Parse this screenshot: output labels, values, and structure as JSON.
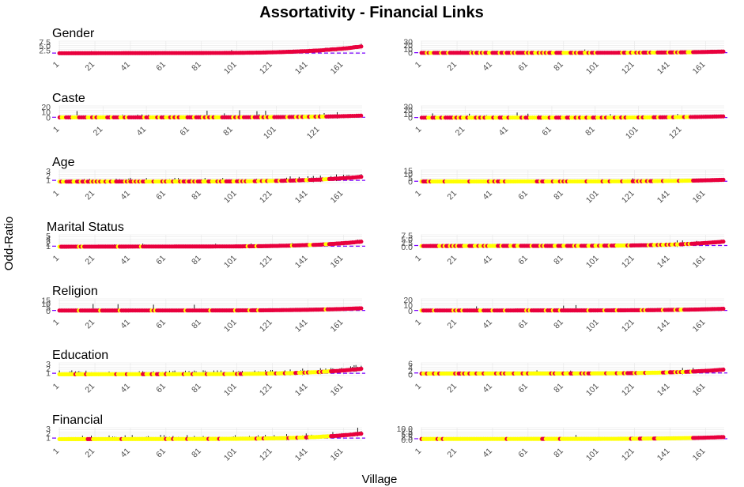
{
  "figure": {
    "title": "Assortativity - Financial Links",
    "xlabel": "Village",
    "ylabel": "Odd-Ratio"
  },
  "colors": {
    "significant_point": "#e8003d",
    "nonsignificant_point": "#ffff00",
    "error_bar": "#000000",
    "reference_line": "#7a00ff",
    "grid": "#e6e6e6"
  },
  "chart_data": [
    {
      "type": "scatter",
      "row": 0,
      "col": 0,
      "title": "Gender",
      "n": 171,
      "x_ticks": [
        "1",
        "21",
        "41",
        "61",
        "81",
        "101",
        "121",
        "141",
        "161"
      ],
      "y_ticks": [
        "2.5",
        "5.0",
        "7.5"
      ],
      "ylim": [
        0.6,
        8.2
      ],
      "ref": 1,
      "base": 1.0,
      "end": 5.0,
      "spike_prob": 0.05,
      "spike": 0.3,
      "yellow_frac": 0.0
    },
    {
      "type": "scatter",
      "row": 0,
      "col": 1,
      "title": "",
      "n": 171,
      "x_ticks": [
        "1",
        "21",
        "41",
        "61",
        "81",
        "101",
        "121",
        "141",
        "161"
      ],
      "y_ticks": [
        "0",
        "10",
        "20",
        "30"
      ],
      "ylim": [
        -2,
        32
      ],
      "ref": 1,
      "base": 0.6,
      "end": 4.0,
      "spike_prob": 0.02,
      "spike": 2.0,
      "yellow_frac": 0.35
    },
    {
      "type": "scatter",
      "row": 1,
      "col": 0,
      "title": "Caste",
      "n": 140,
      "x_ticks": [
        "1",
        "21",
        "41",
        "61",
        "81",
        "101",
        "121"
      ],
      "y_ticks": [
        "0",
        "10",
        "20"
      ],
      "ylim": [
        -1.5,
        22
      ],
      "ref": 1,
      "base": 0.8,
      "end": 4.0,
      "spike_prob": 0.1,
      "spike": 3.0,
      "yellow_frac": 0.4
    },
    {
      "type": "scatter",
      "row": 1,
      "col": 1,
      "title": "",
      "n": 140,
      "x_ticks": [
        "1",
        "21",
        "41",
        "61",
        "81",
        "101",
        "121"
      ],
      "y_ticks": [
        "0",
        "10",
        "20",
        "30"
      ],
      "ylim": [
        -2,
        32
      ],
      "ref": 1,
      "base": 0.6,
      "end": 4.0,
      "spike_prob": 0.06,
      "spike": 3.0,
      "yellow_frac": 0.5
    },
    {
      "type": "scatter",
      "row": 2,
      "col": 0,
      "title": "Age",
      "n": 171,
      "x_ticks": [
        "1",
        "21",
        "41",
        "61",
        "81",
        "101",
        "121",
        "141",
        "161"
      ],
      "y_ticks": [
        "1",
        "2",
        "3"
      ],
      "ylim": [
        0.5,
        3.3
      ],
      "ref": 1,
      "base": 0.75,
      "end": 1.8,
      "spike_prob": 0.25,
      "spike": 0.15,
      "yellow_frac": 0.45
    },
    {
      "type": "scatter",
      "row": 2,
      "col": 1,
      "title": "",
      "n": 171,
      "x_ticks": [
        "1",
        "21",
        "41",
        "61",
        "81",
        "101",
        "121",
        "141",
        "161"
      ],
      "y_ticks": [
        "0",
        "5",
        "10",
        "15"
      ],
      "ylim": [
        -0.8,
        16
      ],
      "ref": 1,
      "base": 0.8,
      "end": 3.0,
      "spike_prob": 0.03,
      "spike": 1.0,
      "yellow_frac": 0.8
    },
    {
      "type": "scatter",
      "row": 3,
      "col": 0,
      "title": "Marital Status",
      "n": 171,
      "x_ticks": [
        "1",
        "21",
        "41",
        "61",
        "81",
        "101",
        "121",
        "141",
        "161"
      ],
      "y_ticks": [
        "1",
        "2",
        "3",
        "4",
        "5"
      ],
      "ylim": [
        0.5,
        5.5
      ],
      "ref": 1,
      "base": 0.85,
      "end": 2.8,
      "spike_prob": 0.05,
      "spike": 0.2,
      "yellow_frac": 0.1
    },
    {
      "type": "scatter",
      "row": 3,
      "col": 1,
      "title": "",
      "n": 171,
      "x_ticks": [
        "1",
        "21",
        "41",
        "61",
        "81",
        "101",
        "121",
        "141",
        "161"
      ],
      "y_ticks": [
        "0.0",
        "2.5",
        "5.0",
        "7.5"
      ],
      "ylim": [
        -0.3,
        8
      ],
      "ref": 1,
      "base": 0.7,
      "end": 3.5,
      "spike_prob": 0.04,
      "spike": 0.5,
      "yellow_frac": 0.4
    },
    {
      "type": "scatter",
      "row": 4,
      "col": 0,
      "title": "Religion",
      "n": 171,
      "x_ticks": [
        "1",
        "21",
        "41",
        "61",
        "81",
        "101",
        "121",
        "141",
        "161"
      ],
      "y_ticks": [
        "0",
        "5",
        "10",
        "15"
      ],
      "ylim": [
        -0.5,
        17
      ],
      "ref": 1,
      "base": 0.9,
      "end": 4.0,
      "spike_prob": 0.03,
      "spike": 2.0,
      "yellow_frac": 0.12
    },
    {
      "type": "scatter",
      "row": 4,
      "col": 1,
      "title": "",
      "n": 171,
      "x_ticks": [
        "1",
        "21",
        "41",
        "61",
        "81",
        "101",
        "121",
        "141",
        "161"
      ],
      "y_ticks": [
        "0",
        "10",
        "20"
      ],
      "ylim": [
        -1,
        22
      ],
      "ref": 1,
      "base": 0.9,
      "end": 4.0,
      "spike_prob": 0.03,
      "spike": 2.0,
      "yellow_frac": 0.2
    },
    {
      "type": "scatter",
      "row": 5,
      "col": 0,
      "title": "Education",
      "n": 171,
      "x_ticks": [
        "1",
        "21",
        "41",
        "61",
        "81",
        "101",
        "121",
        "141",
        "161"
      ],
      "y_ticks": [
        "1",
        "2",
        "3"
      ],
      "ylim": [
        0.5,
        3.3
      ],
      "ref": 1,
      "base": 0.8,
      "end": 2.0,
      "spike_prob": 0.4,
      "spike": 0.15,
      "yellow_frac": 0.75
    },
    {
      "type": "scatter",
      "row": 5,
      "col": 1,
      "title": "",
      "n": 171,
      "x_ticks": [
        "1",
        "21",
        "41",
        "61",
        "81",
        "101",
        "121",
        "141",
        "161"
      ],
      "y_ticks": [
        "0",
        "2",
        "4",
        "6"
      ],
      "ylim": [
        -0.4,
        6.5
      ],
      "ref": 1,
      "base": 0.7,
      "end": 2.8,
      "spike_prob": 0.05,
      "spike": 0.4,
      "yellow_frac": 0.7
    },
    {
      "type": "scatter",
      "row": 6,
      "col": 0,
      "title": "Financial",
      "n": 171,
      "x_ticks": [
        "1",
        "21",
        "41",
        "61",
        "81",
        "101",
        "121",
        "141",
        "161"
      ],
      "y_ticks": [
        "1",
        "2",
        "3"
      ],
      "ylim": [
        0.5,
        3.3
      ],
      "ref": 1,
      "base": 0.8,
      "end": 2.0,
      "spike_prob": 0.25,
      "spike": 0.15,
      "yellow_frac": 0.9
    },
    {
      "type": "scatter",
      "row": 6,
      "col": 1,
      "title": "",
      "n": 171,
      "x_ticks": [
        "1",
        "21",
        "41",
        "61",
        "81",
        "101",
        "121",
        "141",
        "161"
      ],
      "y_ticks": [
        "0.0",
        "2.5",
        "5.0",
        "7.5",
        "10.0"
      ],
      "ylim": [
        -0.5,
        11
      ],
      "ref": 1,
      "base": 0.8,
      "end": 2.5,
      "spike_prob": 0.02,
      "spike": 1.0,
      "yellow_frac": 0.9
    }
  ]
}
